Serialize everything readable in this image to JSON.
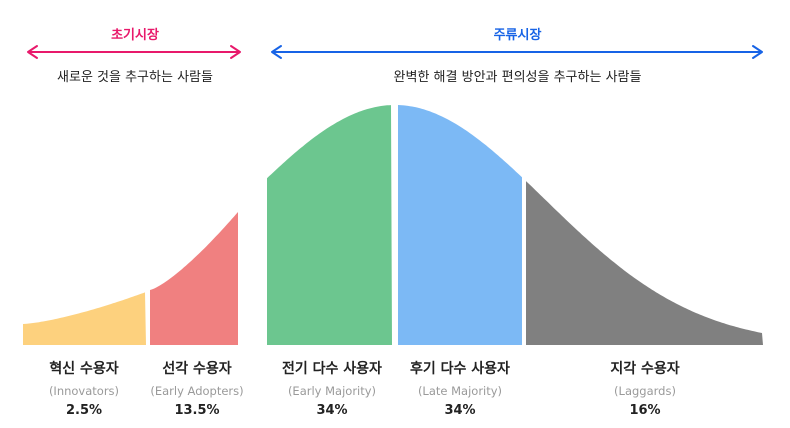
{
  "markets": {
    "early": {
      "title": "초기시장",
      "desc": "새로운 것을 추구하는 사람들",
      "color": "#e8196b"
    },
    "main": {
      "title": "주류시장",
      "desc": "완벽한 해결 방안과 편의성을 추구하는 사람들",
      "color": "#1763e6"
    }
  },
  "segments": [
    {
      "name": "혁신 수용자",
      "en": "(Innovators)",
      "pct": "2.5%",
      "share": 2.5,
      "color": "#fdd17e"
    },
    {
      "name": "선각 수용자",
      "en": "(Early Adopters)",
      "pct": "13.5%",
      "share": 13.5,
      "color": "#f08080"
    },
    {
      "name": "전기 다수 사용자",
      "en": "(Early Majority)",
      "pct": "34%",
      "share": 34,
      "color": "#6cc68f"
    },
    {
      "name": "후기 다수 사용자",
      "en": "(Late Majority)",
      "pct": "34%",
      "share": 34,
      "color": "#7cb9f5"
    },
    {
      "name": "지각 수용자",
      "en": "(Laggards)",
      "pct": "16%",
      "share": 16,
      "color": "#808080"
    }
  ]
}
